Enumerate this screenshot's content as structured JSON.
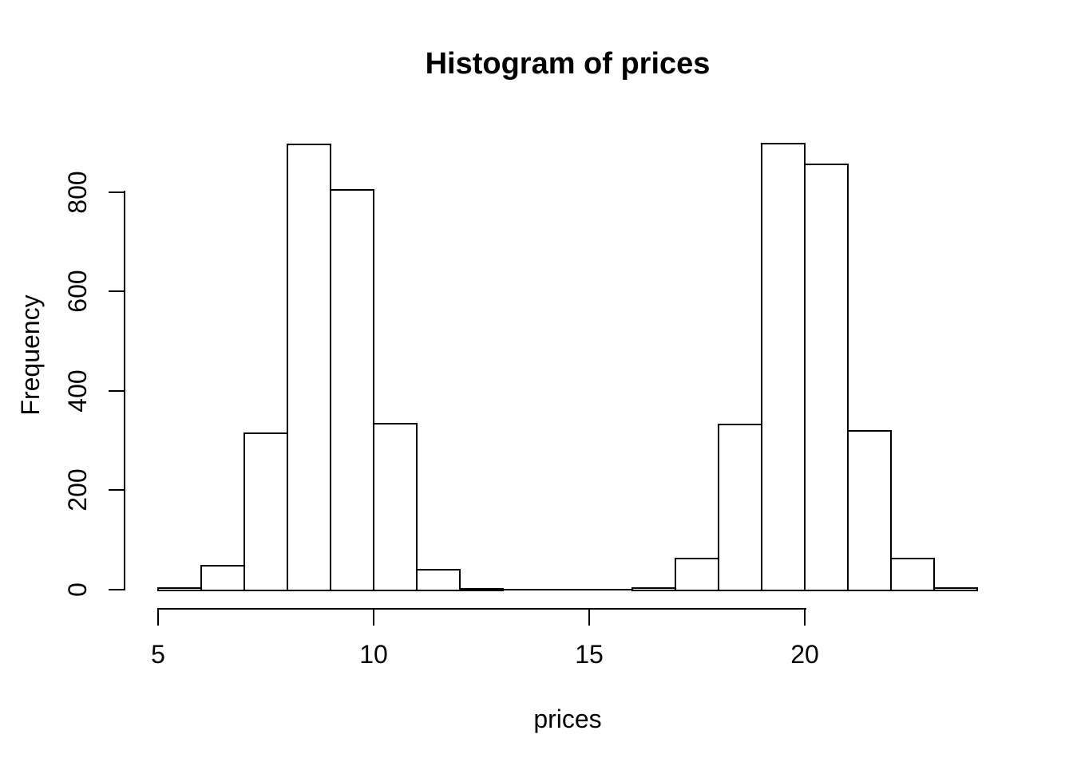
{
  "chart_data": {
    "type": "bar",
    "subtype": "histogram",
    "title": "Histogram of prices",
    "xlabel": "prices",
    "ylabel": "Frequency",
    "bin_edges": [
      5,
      6,
      7,
      8,
      9,
      10,
      11,
      12,
      13,
      14,
      15,
      16,
      17,
      18,
      19,
      20,
      21,
      22,
      23,
      24
    ],
    "counts": [
      4,
      48,
      314,
      895,
      805,
      334,
      40,
      2,
      0,
      0,
      0,
      4,
      63,
      333,
      897,
      856,
      319,
      63,
      4
    ],
    "x_ticks": [
      5,
      10,
      15,
      20
    ],
    "x_tick_labels": [
      "5",
      "10",
      "15",
      "20"
    ],
    "y_ticks": [
      0,
      200,
      400,
      600,
      800
    ],
    "y_tick_labels": [
      "0",
      "200",
      "400",
      "600",
      "800"
    ],
    "xlim": [
      5,
      24
    ],
    "ylim": [
      0,
      900
    ],
    "grid": false,
    "legend": null,
    "bar_fill_color": "#ffffff",
    "bar_border_color": "#000000",
    "axis_color": "#000000",
    "background_color": "#ffffff",
    "text_color": "#000000"
  }
}
